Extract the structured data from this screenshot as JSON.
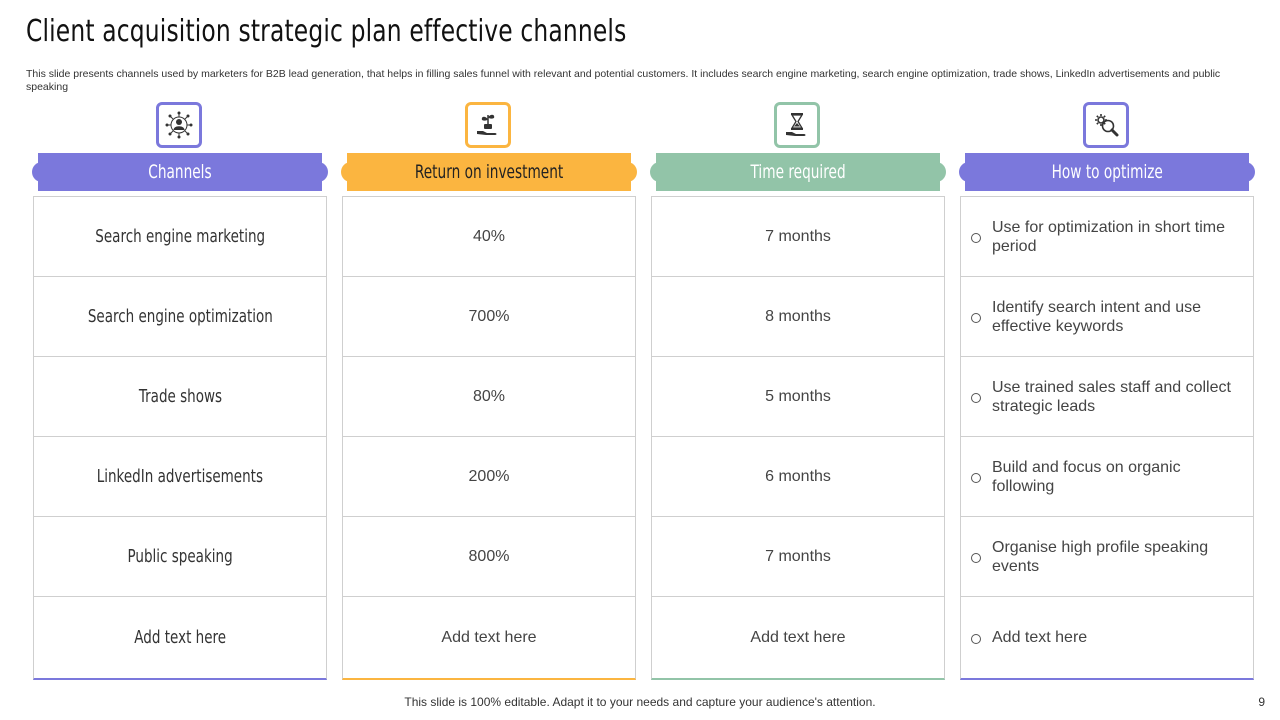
{
  "title": "Client acquisition strategic plan effective channels",
  "subtitle": "This slide presents channels used by marketers for B2B lead generation, that helps in filling sales funnel with relevant and potential customers. It includes search engine marketing, search engine optimization, trade shows, LinkedIn advertisements and public speaking",
  "colors": {
    "purple": "#7b78dc",
    "orange": "#fbb540",
    "green": "#92c4a8"
  },
  "columns": [
    {
      "icon": "network-people-icon",
      "header": "Channels",
      "rows": [
        "Search engine marketing",
        "Search engine optimization",
        "Trade shows",
        "LinkedIn advertisements",
        "Public speaking",
        "Add text here"
      ]
    },
    {
      "icon": "money-plant-hand-icon",
      "header": "Return on investment",
      "rows": [
        "40%",
        "700%",
        "80%",
        "200%",
        "800%",
        "Add text here"
      ]
    },
    {
      "icon": "hourglass-hand-icon",
      "header": "Time required",
      "rows": [
        "7 months",
        "8 months",
        "5 months",
        "6 months",
        "7 months",
        "Add text here"
      ]
    },
    {
      "icon": "gear-magnifier-icon",
      "header": "How to optimize",
      "rows": [
        "Use for optimization in short time period",
        "Identify  search intent and use effective keywords",
        "Use trained sales staff and collect strategic leads",
        "Build and focus on organic following",
        "Organise high profile speaking events",
        "Add text here"
      ]
    }
  ],
  "footer": "This slide is 100% editable. Adapt it to your needs and capture your audience's attention.",
  "page_number": "9"
}
